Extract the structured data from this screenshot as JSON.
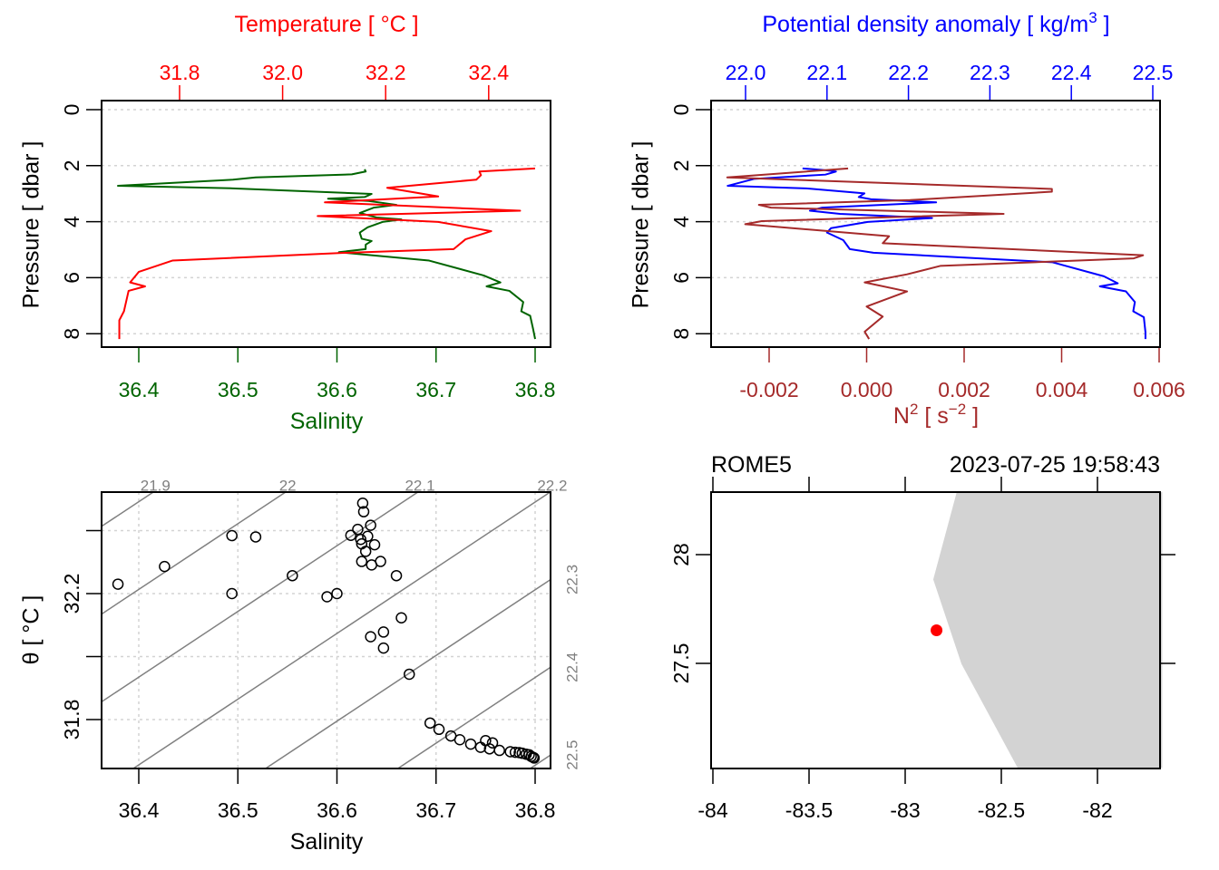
{
  "colors": {
    "temperature": "#FF0000",
    "salinity": "#006400",
    "density": "#0000FF",
    "n2": "#A52A2A",
    "isopycnal": "#808080",
    "land": "#D3D3D3",
    "station": "#FF0000"
  },
  "chart_data": [
    {
      "id": "temperature_salinity_profile",
      "type": "line",
      "title": "Temperature [ °C ]",
      "xlabel": "Salinity",
      "ylabel": "Pressure [ dbar ]",
      "ylim": [
        8.48,
        -0.32
      ],
      "xlim_salinity": [
        36.3625,
        36.8156
      ],
      "xlim_temperature": [
        31.649,
        32.52
      ],
      "pressure_ticks": [
        "0",
        "2",
        "4",
        "6",
        "8"
      ],
      "salinity_ticks": [
        "36.4",
        "36.5",
        "36.6",
        "36.7",
        "36.8"
      ],
      "temperature_ticks": [
        "31.8",
        "32.0",
        "32.2",
        "32.4"
      ],
      "grid": true,
      "series": [
        {
          "name": "Salinity",
          "points": [
            [
              36.628,
              2.13
            ],
            [
              36.629,
              2.21
            ],
            [
              36.615,
              2.31
            ],
            [
              36.518,
              2.42
            ],
            [
              36.495,
              2.5
            ],
            [
              36.379,
              2.72
            ],
            [
              36.495,
              2.81
            ],
            [
              36.635,
              3.01
            ],
            [
              36.628,
              3.12
            ],
            [
              36.591,
              3.18
            ],
            [
              36.632,
              3.26
            ],
            [
              36.66,
              3.4
            ],
            [
              36.637,
              3.5
            ],
            [
              36.623,
              3.69
            ],
            [
              36.64,
              3.85
            ],
            [
              36.665,
              3.92
            ],
            [
              36.646,
              4.01
            ],
            [
              36.631,
              4.2
            ],
            [
              36.623,
              4.39
            ],
            [
              36.625,
              4.61
            ],
            [
              36.635,
              4.69
            ],
            [
              36.629,
              4.82
            ],
            [
              36.629,
              4.98
            ],
            [
              36.602,
              5.09
            ],
            [
              36.693,
              5.39
            ],
            [
              36.748,
              5.92
            ],
            [
              36.765,
              6.17
            ],
            [
              36.751,
              6.31
            ],
            [
              36.774,
              6.47
            ],
            [
              36.788,
              6.87
            ],
            [
              36.786,
              7.2
            ],
            [
              36.795,
              7.36
            ],
            [
              36.798,
              7.84
            ],
            [
              36.8,
              8.19
            ]
          ]
        },
        {
          "name": "Temperature",
          "points": [
            [
              32.49,
              2.1
            ],
            [
              32.382,
              2.21
            ],
            [
              32.385,
              2.34
            ],
            [
              32.376,
              2.5
            ],
            [
              32.203,
              2.79
            ],
            [
              32.302,
              3.1
            ],
            [
              32.082,
              3.31
            ],
            [
              32.461,
              3.61
            ],
            [
              32.068,
              3.8
            ],
            [
              32.302,
              4.01
            ],
            [
              32.405,
              4.34
            ],
            [
              32.355,
              4.63
            ],
            [
              32.332,
              4.98
            ],
            [
              32.109,
              5.12
            ],
            [
              31.786,
              5.39
            ],
            [
              31.721,
              5.79
            ],
            [
              31.704,
              6.17
            ],
            [
              31.733,
              6.31
            ],
            [
              31.701,
              6.47
            ],
            [
              31.692,
              7.2
            ],
            [
              31.683,
              7.52
            ],
            [
              31.683,
              8.19
            ]
          ]
        }
      ]
    },
    {
      "id": "density_n2_profile",
      "type": "line",
      "title_parts": [
        "Potential density anomaly [ kg/m",
        "3",
        " ]"
      ],
      "xlabel_parts": [
        "N",
        "2",
        " [ s",
        "−2",
        " ]"
      ],
      "ylabel": "Pressure [ dbar ]",
      "ylim": [
        8.48,
        -0.32
      ],
      "xlim_density": [
        21.958,
        22.509
      ],
      "xlim_n2": [
        -0.00319,
        0.00602
      ],
      "pressure_ticks": [
        "0",
        "2",
        "4",
        "6",
        "8"
      ],
      "density_ticks": [
        "22.0",
        "22.1",
        "22.2",
        "22.3",
        "22.4",
        "22.5"
      ],
      "n2_ticks": [
        "-0.002",
        "0.000",
        "0.002",
        "0.004",
        "0.006"
      ],
      "grid": true,
      "series": [
        {
          "name": "Potential density anomaly",
          "points": [
            [
              22.07,
              2.1
            ],
            [
              22.094,
              2.15
            ],
            [
              22.111,
              2.21
            ],
            [
              22.098,
              2.32
            ],
            [
              22.011,
              2.47
            ],
            [
              21.978,
              2.72
            ],
            [
              22.074,
              2.81
            ],
            [
              22.146,
              2.99
            ],
            [
              22.139,
              3.12
            ],
            [
              22.154,
              3.2
            ],
            [
              22.234,
              3.31
            ],
            [
              22.094,
              3.5
            ],
            [
              22.079,
              3.61
            ],
            [
              22.116,
              3.72
            ],
            [
              22.229,
              3.87
            ],
            [
              22.15,
              4.01
            ],
            [
              22.105,
              4.23
            ],
            [
              22.1,
              4.39
            ],
            [
              22.12,
              4.66
            ],
            [
              22.128,
              4.98
            ],
            [
              22.157,
              5.11
            ],
            [
              22.377,
              5.45
            ],
            [
              22.44,
              5.95
            ],
            [
              22.457,
              6.2
            ],
            [
              22.435,
              6.31
            ],
            [
              22.467,
              6.49
            ],
            [
              22.478,
              6.87
            ],
            [
              22.476,
              7.2
            ],
            [
              22.489,
              7.41
            ],
            [
              22.491,
              7.95
            ],
            [
              22.491,
              8.19
            ]
          ]
        },
        {
          "name": "N2",
          "points": [
            [
              -0.00038,
              2.1
            ],
            [
              -0.00286,
              2.42
            ],
            [
              0.0038,
              2.83
            ],
            [
              0.0038,
              2.93
            ],
            [
              0.00089,
              3.23
            ],
            [
              -0.00221,
              3.4
            ],
            [
              -0.00196,
              3.5
            ],
            [
              0.00281,
              3.72
            ],
            [
              -0.00215,
              3.98
            ],
            [
              -0.00249,
              4.09
            ],
            [
              0.00046,
              4.52
            ],
            [
              0.00033,
              4.77
            ],
            [
              0.00567,
              5.2
            ],
            [
              0.00548,
              5.31
            ],
            [
              0.00151,
              5.58
            ],
            [
              0.00083,
              5.88
            ],
            [
              -4e-05,
              6.17
            ],
            [
              0.00083,
              6.49
            ],
            [
              0.0,
              7.03
            ],
            [
              0.00033,
              7.39
            ],
            [
              -4e-05,
              7.93
            ],
            [
              5e-05,
              8.19
            ]
          ]
        }
      ]
    },
    {
      "id": "ts_diagram",
      "type": "scatter",
      "xlabel": "Salinity",
      "ylabel": "θ [ °C ]",
      "xlim": [
        36.3625,
        36.8156
      ],
      "ylim": [
        31.645,
        32.522
      ],
      "salinity_ticks": [
        "36.4",
        "36.5",
        "36.6",
        "36.7",
        "36.8"
      ],
      "theta_ticks": [
        "31.8",
        "32.0",
        "32.2",
        "32.4"
      ],
      "theta_labels": [
        "31.8",
        "32.2"
      ],
      "isopycnals": [
        "21.9",
        "22",
        "22.1",
        "22.2",
        "22.3",
        "22.4",
        "22.5"
      ],
      "grid": true,
      "points": [
        [
          36.379,
          32.23
        ],
        [
          36.426,
          32.286
        ],
        [
          36.494,
          32.384
        ],
        [
          36.518,
          32.38
        ],
        [
          36.494,
          32.2
        ],
        [
          36.555,
          32.257
        ],
        [
          36.59,
          32.19
        ],
        [
          36.6,
          32.2
        ],
        [
          36.626,
          32.487
        ],
        [
          36.627,
          32.46
        ],
        [
          36.634,
          32.417
        ],
        [
          36.614,
          32.385
        ],
        [
          36.621,
          32.404
        ],
        [
          36.624,
          32.372
        ],
        [
          36.625,
          32.358
        ],
        [
          36.631,
          32.382
        ],
        [
          36.629,
          32.334
        ],
        [
          36.638,
          32.355
        ],
        [
          36.625,
          32.302
        ],
        [
          36.635,
          32.291
        ],
        [
          36.644,
          32.302
        ],
        [
          36.66,
          32.257
        ],
        [
          36.665,
          32.123
        ],
        [
          36.634,
          32.063
        ],
        [
          36.647,
          32.078
        ],
        [
          36.647,
          32.027
        ],
        [
          36.673,
          31.944
        ],
        [
          36.694,
          31.789
        ],
        [
          36.703,
          31.769
        ],
        [
          36.715,
          31.748
        ],
        [
          36.724,
          31.736
        ],
        [
          36.735,
          31.722
        ],
        [
          36.745,
          31.712
        ],
        [
          36.75,
          31.733
        ],
        [
          36.757,
          31.726
        ],
        [
          36.754,
          31.707
        ],
        [
          36.764,
          31.702
        ],
        [
          36.775,
          31.698
        ],
        [
          36.78,
          31.696
        ],
        [
          36.784,
          31.695
        ],
        [
          36.787,
          31.693
        ],
        [
          36.791,
          31.69
        ],
        [
          36.794,
          31.688
        ],
        [
          36.796,
          31.683
        ],
        [
          36.798,
          31.68
        ],
        [
          36.799,
          31.678
        ]
      ]
    },
    {
      "id": "station_map",
      "type": "map",
      "station": "ROME5",
      "datetime": "2023-07-25 19:58:43",
      "xlim": [
        -84.008,
        -81.663
      ],
      "ylim": [
        27.02,
        28.287
      ],
      "lon_ticks": [
        "-84",
        "-83.5",
        "-83",
        "-82.5",
        "-82"
      ],
      "lat_ticks": [
        "28",
        "27.5"
      ],
      "station_position": [
        -82.837,
        27.652
      ],
      "coastline": [
        [
          -82.732,
          28.287
        ],
        [
          -82.854,
          27.886
        ],
        [
          -82.707,
          27.497
        ],
        [
          -82.415,
          27.02
        ],
        [
          -81.663,
          27.02
        ],
        [
          -81.663,
          28.287
        ]
      ]
    }
  ]
}
